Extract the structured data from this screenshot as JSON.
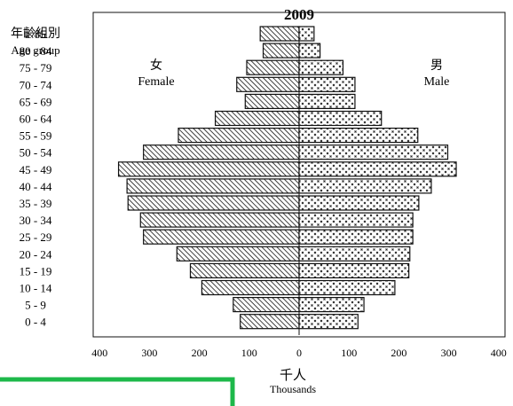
{
  "chart_data": {
    "type": "bar",
    "orientation": "horizontal",
    "subtype": "population-pyramid",
    "title": "2009",
    "y_header": [
      "年齡組別",
      "Age group"
    ],
    "categories": [
      "≥ 85",
      "80 - 84",
      "75 - 79",
      "70 - 74",
      "65 - 69",
      "60 - 64",
      "55 - 59",
      "50 - 54",
      "45 - 49",
      "40 - 44",
      "35 - 39",
      "30 - 34",
      "25 - 29",
      "20 - 24",
      "15 - 19",
      "10 - 14",
      "5 - 9",
      "0 - 4"
    ],
    "series": [
      {
        "name": "Female",
        "label_zh": "女",
        "side": "left",
        "values": [
          78,
          72,
          105,
          125,
          108,
          168,
          242,
          312,
          362,
          345,
          343,
          318,
          312,
          245,
          218,
          195,
          132,
          118
        ]
      },
      {
        "name": "Male",
        "label_zh": "男",
        "side": "right",
        "values": [
          30,
          42,
          88,
          112,
          112,
          165,
          238,
          298,
          315,
          265,
          240,
          228,
          228,
          222,
          220,
          192,
          130,
          118
        ]
      }
    ],
    "x_ticks": [
      "400",
      "300",
      "200",
      "100",
      "0",
      "100",
      "200",
      "300",
      "400"
    ],
    "xlim": [
      -400,
      400
    ],
    "xlabel_zh": "千人",
    "xlabel": "Thousands",
    "grid": false,
    "colors": {
      "ink": "#111111",
      "border": "#1db84a"
    }
  }
}
